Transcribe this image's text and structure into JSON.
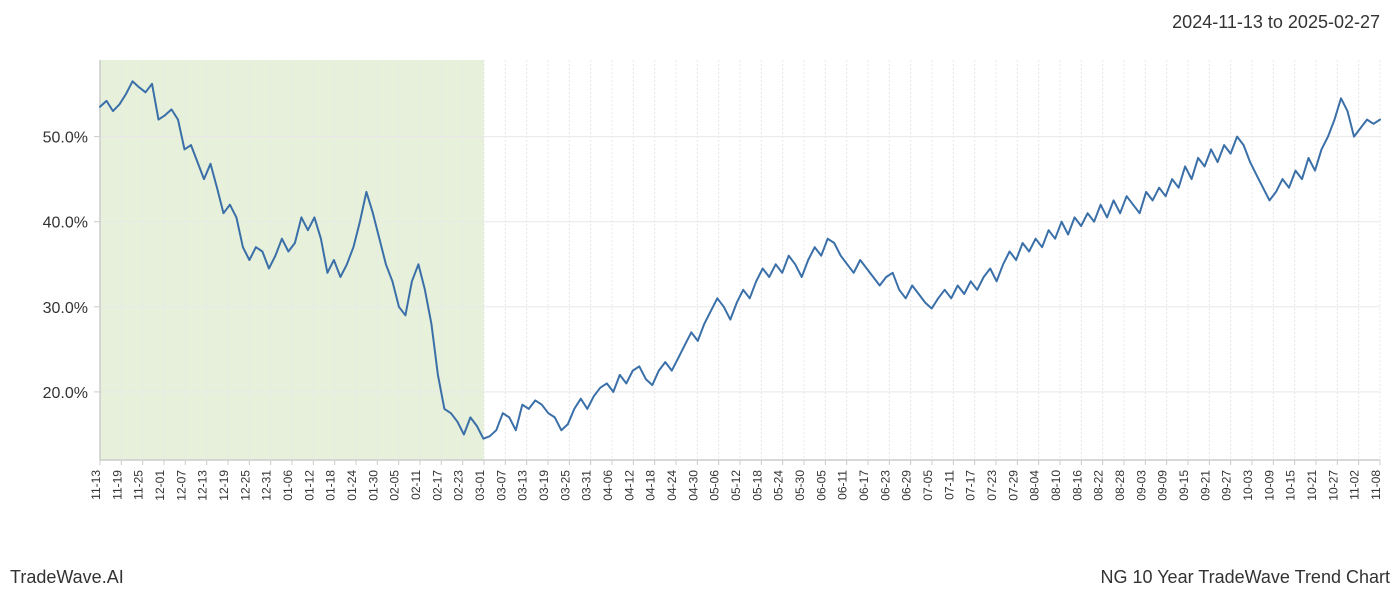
{
  "date_range": "2024-11-13 to 2025-02-27",
  "footer_left": "TradeWave.AI",
  "footer_right": "NG 10 Year TradeWave Trend Chart",
  "chart": {
    "type": "line",
    "background_color": "#ffffff",
    "plot_border_color": "#cccccc",
    "grid_color": "#e8e8e8",
    "line_color": "#3a6fa8",
    "line_width": 2,
    "highlight_fill": "#dceacc",
    "highlight_opacity": 0.7,
    "y_axis": {
      "min": 12,
      "max": 59,
      "ticks": [
        20,
        30,
        40,
        50
      ],
      "tick_labels": [
        "20.0%",
        "30.0%",
        "40.0%",
        "50.0%"
      ],
      "label_fontsize": 16
    },
    "x_axis": {
      "labels": [
        "11-13",
        "11-19",
        "11-25",
        "12-01",
        "12-07",
        "12-13",
        "12-19",
        "12-25",
        "12-31",
        "01-06",
        "01-12",
        "01-18",
        "01-24",
        "01-30",
        "02-05",
        "02-11",
        "02-17",
        "02-23",
        "03-01",
        "03-07",
        "03-13",
        "03-19",
        "03-25",
        "03-31",
        "04-06",
        "04-12",
        "04-18",
        "04-24",
        "04-30",
        "05-06",
        "05-12",
        "05-18",
        "05-24",
        "05-30",
        "06-05",
        "06-11",
        "06-17",
        "06-23",
        "06-29",
        "07-05",
        "07-11",
        "07-17",
        "07-23",
        "07-29",
        "08-04",
        "08-10",
        "08-16",
        "08-22",
        "08-28",
        "09-03",
        "09-09",
        "09-15",
        "09-21",
        "09-27",
        "10-03",
        "10-09",
        "10-15",
        "10-21",
        "10-27",
        "11-02",
        "11-08"
      ],
      "label_fontsize": 12,
      "rotation": -90
    },
    "highlight_region": {
      "x_start_index": 0,
      "x_end_index": 18
    },
    "series": [
      53.5,
      54.2,
      53.0,
      53.8,
      55.0,
      56.5,
      55.8,
      55.2,
      56.2,
      52.0,
      52.5,
      53.2,
      52.0,
      48.5,
      49.0,
      47.0,
      45.0,
      46.8,
      44.0,
      41.0,
      42.0,
      40.5,
      37.0,
      35.5,
      37.0,
      36.5,
      34.5,
      36.0,
      38.0,
      36.5,
      37.5,
      40.5,
      39.0,
      40.5,
      38.0,
      34.0,
      35.5,
      33.5,
      35.0,
      37.0,
      40.0,
      43.5,
      41.0,
      38.0,
      35.0,
      33.0,
      30.0,
      29.0,
      33.0,
      35.0,
      32.0,
      28.0,
      22.0,
      18.0,
      17.5,
      16.5,
      15.0,
      17.0,
      16.0,
      14.5,
      14.8,
      15.5,
      17.5,
      17.0,
      15.5,
      18.5,
      18.0,
      19.0,
      18.5,
      17.5,
      17.0,
      15.5,
      16.2,
      18.0,
      19.2,
      18.0,
      19.5,
      20.5,
      21.0,
      20.0,
      22.0,
      21.0,
      22.5,
      23.0,
      21.5,
      20.8,
      22.5,
      23.5,
      22.5,
      24.0,
      25.5,
      27.0,
      26.0,
      28.0,
      29.5,
      31.0,
      30.0,
      28.5,
      30.5,
      32.0,
      31.0,
      33.0,
      34.5,
      33.5,
      35.0,
      34.0,
      36.0,
      35.0,
      33.5,
      35.5,
      37.0,
      36.0,
      38.0,
      37.5,
      36.0,
      35.0,
      34.0,
      35.5,
      34.5,
      33.5,
      32.5,
      33.5,
      34.0,
      32.0,
      31.0,
      32.5,
      31.5,
      30.5,
      29.8,
      31.0,
      32.0,
      31.0,
      32.5,
      31.5,
      33.0,
      32.0,
      33.5,
      34.5,
      33.0,
      35.0,
      36.5,
      35.5,
      37.5,
      36.5,
      38.0,
      37.0,
      39.0,
      38.0,
      40.0,
      38.5,
      40.5,
      39.5,
      41.0,
      40.0,
      42.0,
      40.5,
      42.5,
      41.0,
      43.0,
      42.0,
      41.0,
      43.5,
      42.5,
      44.0,
      43.0,
      45.0,
      44.0,
      46.5,
      45.0,
      47.5,
      46.5,
      48.5,
      47.0,
      49.0,
      48.0,
      50.0,
      49.0,
      47.0,
      45.5,
      44.0,
      42.5,
      43.5,
      45.0,
      44.0,
      46.0,
      45.0,
      47.5,
      46.0,
      48.5,
      50.0,
      52.0,
      54.5,
      53.0,
      50.0,
      51.0,
      52.0,
      51.5,
      52.0
    ]
  }
}
